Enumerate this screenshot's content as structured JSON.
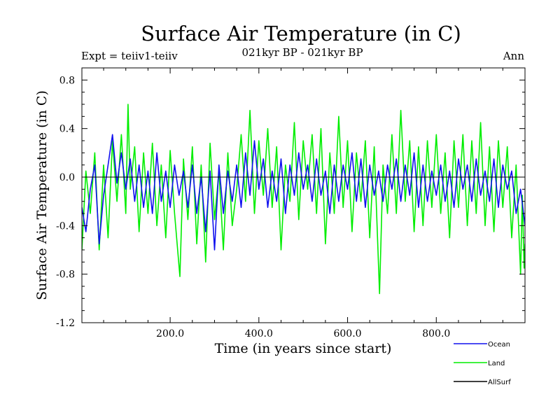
{
  "chart_data": {
    "type": "line",
    "title": "Surface Air Temperature (in C)",
    "subtitle": "021kyr BP - 021kyr BP",
    "left_note": "Expt = teiiv1-teiiv",
    "right_note": "Ann",
    "xlabel": "Time (in years since start)",
    "ylabel": "Surface Air Temperature (in C)",
    "xlim": [
      1,
      1000
    ],
    "ylim": [
      -1.2,
      0.9
    ],
    "x_ticks": [
      {
        "value": 200,
        "label": "200.0"
      },
      {
        "value": 400,
        "label": "400.0"
      },
      {
        "value": 600,
        "label": "600.0"
      },
      {
        "value": 800,
        "label": "800.0"
      }
    ],
    "y_ticks": [
      {
        "value": 0.8,
        "label": "0.8"
      },
      {
        "value": 0.4,
        "label": "0.4"
      },
      {
        "value": 0.0,
        "label": "0.0"
      },
      {
        "value": -0.4,
        "label": "-0.4"
      },
      {
        "value": -0.8,
        "label": "-0.8"
      },
      {
        "value": -1.2,
        "label": "-1.2"
      }
    ],
    "zero_line": true,
    "grid": false,
    "legend_position": "bottom-right, below plot",
    "series": [
      {
        "name": "Land",
        "color": "#00ee00",
        "x": [
          1,
          10,
          20,
          30,
          40,
          50,
          60,
          70,
          80,
          90,
          100,
          105,
          110,
          120,
          130,
          140,
          150,
          160,
          170,
          180,
          190,
          200,
          210,
          222,
          230,
          240,
          250,
          260,
          270,
          280,
          290,
          300,
          310,
          320,
          330,
          340,
          350,
          360,
          370,
          380,
          390,
          400,
          410,
          420,
          430,
          440,
          450,
          460,
          470,
          480,
          490,
          500,
          510,
          520,
          530,
          540,
          550,
          560,
          570,
          580,
          590,
          600,
          610,
          620,
          630,
          640,
          650,
          660,
          672,
          680,
          690,
          700,
          710,
          720,
          730,
          740,
          750,
          760,
          770,
          780,
          790,
          800,
          810,
          820,
          830,
          840,
          850,
          860,
          870,
          880,
          890,
          900,
          910,
          920,
          930,
          940,
          950,
          960,
          970,
          980,
          990,
          994,
          998,
          1000
        ],
        "y": [
          -0.6,
          0.05,
          -0.3,
          0.2,
          -0.6,
          0.1,
          -0.5,
          0.3,
          -0.2,
          0.35,
          -0.3,
          0.6,
          -0.1,
          0.25,
          -0.45,
          0.2,
          -0.3,
          0.28,
          -0.4,
          0.1,
          -0.5,
          0.22,
          -0.3,
          -0.82,
          0.15,
          -0.35,
          0.25,
          -0.55,
          0.1,
          -0.7,
          0.28,
          -0.35,
          0.05,
          -0.6,
          0.2,
          -0.4,
          -0.1,
          0.35,
          -0.2,
          0.55,
          -0.3,
          0.3,
          -0.15,
          0.4,
          -0.25,
          0.25,
          -0.6,
          0.1,
          -0.2,
          0.45,
          -0.35,
          0.3,
          -0.1,
          0.35,
          -0.3,
          0.4,
          -0.55,
          0.2,
          -0.3,
          0.5,
          -0.25,
          0.3,
          -0.45,
          0.2,
          -0.2,
          0.3,
          -0.5,
          0.25,
          -0.96,
          0.1,
          -0.3,
          0.35,
          -0.3,
          0.55,
          -0.2,
          0.3,
          -0.45,
          0.25,
          -0.4,
          0.3,
          -0.25,
          0.35,
          -0.3,
          0.2,
          -0.5,
          0.3,
          -0.25,
          0.35,
          -0.4,
          0.3,
          -0.3,
          0.45,
          -0.4,
          0.25,
          -0.45,
          0.3,
          -0.25,
          0.25,
          -0.5,
          0.1,
          -0.8,
          -0.15,
          -0.75,
          -0.55
        ]
      },
      {
        "name": "Ocean",
        "color": "#1010ee",
        "x": [
          1,
          10,
          20,
          30,
          40,
          50,
          60,
          70,
          80,
          90,
          100,
          110,
          120,
          130,
          140,
          150,
          160,
          170,
          180,
          190,
          200,
          210,
          220,
          230,
          240,
          250,
          260,
          270,
          280,
          290,
          300,
          310,
          320,
          330,
          340,
          350,
          360,
          370,
          380,
          390,
          400,
          410,
          420,
          430,
          440,
          450,
          460,
          470,
          480,
          490,
          500,
          510,
          520,
          530,
          540,
          550,
          560,
          570,
          580,
          590,
          600,
          610,
          620,
          630,
          640,
          650,
          660,
          670,
          680,
          690,
          700,
          710,
          720,
          730,
          740,
          750,
          760,
          770,
          780,
          790,
          800,
          810,
          820,
          830,
          840,
          850,
          860,
          870,
          880,
          890,
          900,
          910,
          920,
          930,
          940,
          950,
          960,
          970,
          980,
          990,
          1000
        ],
        "y": [
          -0.25,
          -0.45,
          -0.1,
          0.1,
          -0.55,
          -0.15,
          0.1,
          0.35,
          -0.05,
          0.2,
          -0.1,
          0.15,
          -0.2,
          0.1,
          -0.25,
          0.05,
          -0.3,
          0.2,
          -0.2,
          0.05,
          -0.25,
          0.1,
          -0.15,
          0.05,
          -0.25,
          0.1,
          -0.3,
          0.0,
          -0.45,
          0.05,
          -0.6,
          0.1,
          -0.3,
          0.05,
          -0.2,
          0.1,
          -0.25,
          0.2,
          -0.15,
          0.3,
          -0.1,
          0.15,
          -0.25,
          0.05,
          -0.2,
          0.15,
          -0.3,
          0.1,
          -0.15,
          0.2,
          -0.1,
          0.1,
          -0.2,
          0.15,
          -0.15,
          0.05,
          -0.3,
          0.1,
          -0.2,
          0.1,
          -0.1,
          0.2,
          -0.2,
          0.15,
          -0.25,
          0.1,
          -0.15,
          0.05,
          -0.2,
          0.1,
          -0.1,
          0.15,
          -0.2,
          0.1,
          -0.15,
          0.2,
          -0.25,
          0.1,
          -0.2,
          0.05,
          -0.15,
          0.1,
          -0.2,
          0.05,
          -0.25,
          0.15,
          -0.1,
          0.1,
          -0.2,
          0.15,
          -0.15,
          0.05,
          -0.2,
          0.15,
          -0.25,
          0.1,
          -0.1,
          0.05,
          -0.3,
          -0.1,
          -0.4
        ]
      }
    ],
    "legend": [
      {
        "name": "Ocean",
        "color": "#1010ee"
      },
      {
        "name": "Land",
        "color": "#00ee00"
      },
      {
        "name": "AllSurf",
        "color": "#000000"
      }
    ]
  }
}
